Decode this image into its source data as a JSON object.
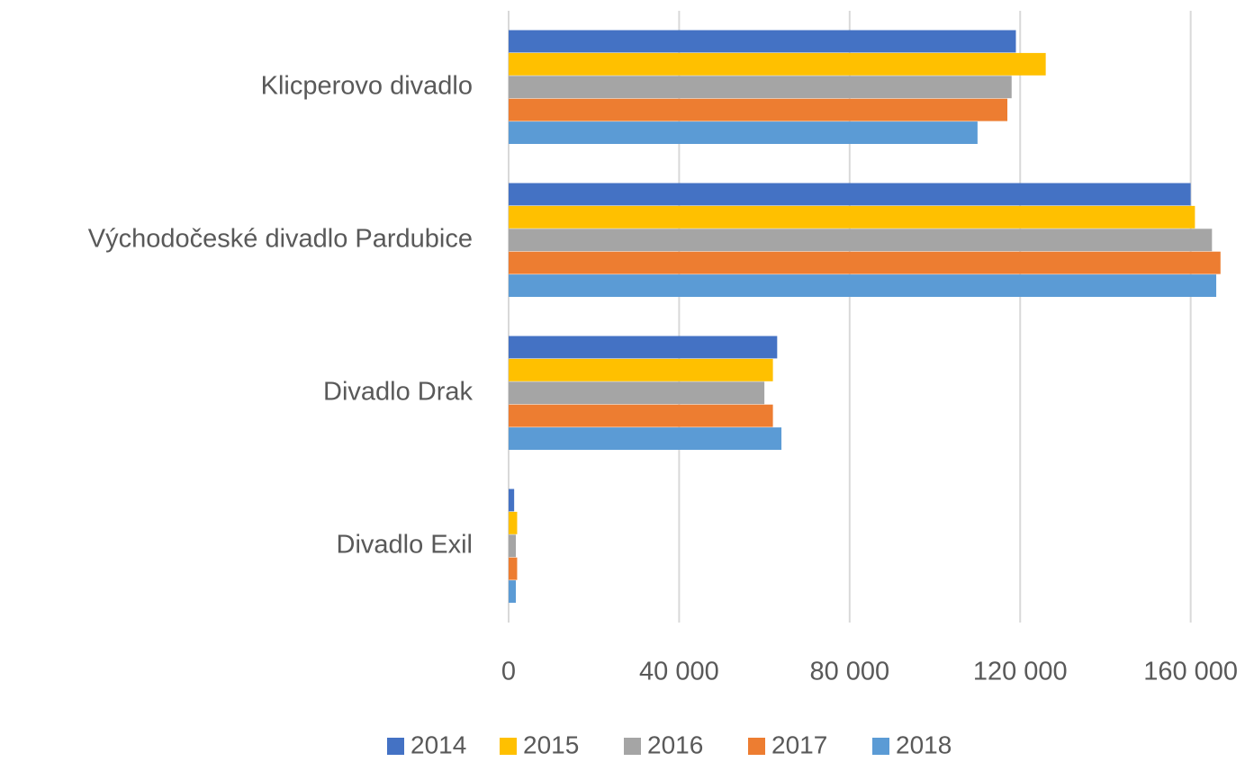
{
  "chart_data": {
    "type": "barh",
    "categories": [
      "Klicperovo divadlo",
      "Východočeské divadlo Pardubice",
      "Divadlo Drak",
      "Divadlo Exil"
    ],
    "series": [
      {
        "name": "2014",
        "color": "#4472c4",
        "values": [
          119000,
          160000,
          63000,
          1300
        ]
      },
      {
        "name": "2015",
        "color": "#ffc000",
        "values": [
          126000,
          161000,
          62000,
          2000
        ]
      },
      {
        "name": "2016",
        "color": "#a5a5a5",
        "values": [
          118000,
          165000,
          60000,
          1700
        ]
      },
      {
        "name": "2017",
        "color": "#ed7d31",
        "values": [
          117000,
          167000,
          62000,
          2000
        ]
      },
      {
        "name": "2018",
        "color": "#5b9bd5",
        "values": [
          110000,
          166000,
          64000,
          1700
        ]
      }
    ],
    "xlim": [
      0,
      170000
    ],
    "xticks": [
      0,
      {
        "value": 40000,
        "label": "40 000"
      },
      {
        "value": 80000,
        "label": "80 000"
      },
      {
        "value": 120000,
        "label": "120 000"
      },
      {
        "value": 160000,
        "label": "160 000"
      }
    ],
    "grid": true,
    "legend": "bottom"
  }
}
